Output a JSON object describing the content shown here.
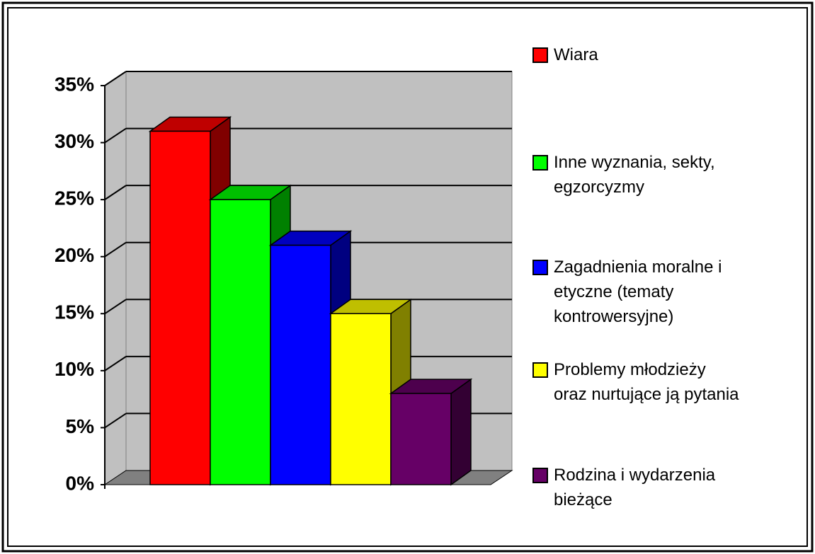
{
  "chart_data": {
    "type": "bar3d",
    "series": [
      {
        "name": "Wiara",
        "color": "#ff0000",
        "values": [
          31
        ]
      },
      {
        "name": "Inne wyznania, sekty,\negzorcyzmy",
        "color": "#00ff00",
        "values": [
          25
        ]
      },
      {
        "name": "Zagadnienia moralne i\netyczne (tematy\nkontrowersyjne)",
        "color": "#0000ff",
        "values": [
          21
        ]
      },
      {
        "name": "Problemy młodzieży\noraz nurtujące ją pytania",
        "color": "#ffff00",
        "values": [
          15
        ]
      },
      {
        "name": "Rodzina i wydarzenia\nbieżące",
        "color": "#660066",
        "values": [
          8
        ]
      }
    ],
    "ylim": [
      0,
      35
    ],
    "yticks": [
      {
        "value": 0,
        "label": "0%"
      },
      {
        "value": 5,
        "label": "5%"
      },
      {
        "value": 10,
        "label": "10%"
      },
      {
        "value": 15,
        "label": "15%"
      },
      {
        "value": 20,
        "label": "20%"
      },
      {
        "value": 25,
        "label": "25%"
      },
      {
        "value": 30,
        "label": "30%"
      },
      {
        "value": 35,
        "label": "35%"
      }
    ],
    "grid": true,
    "legend": "right"
  }
}
